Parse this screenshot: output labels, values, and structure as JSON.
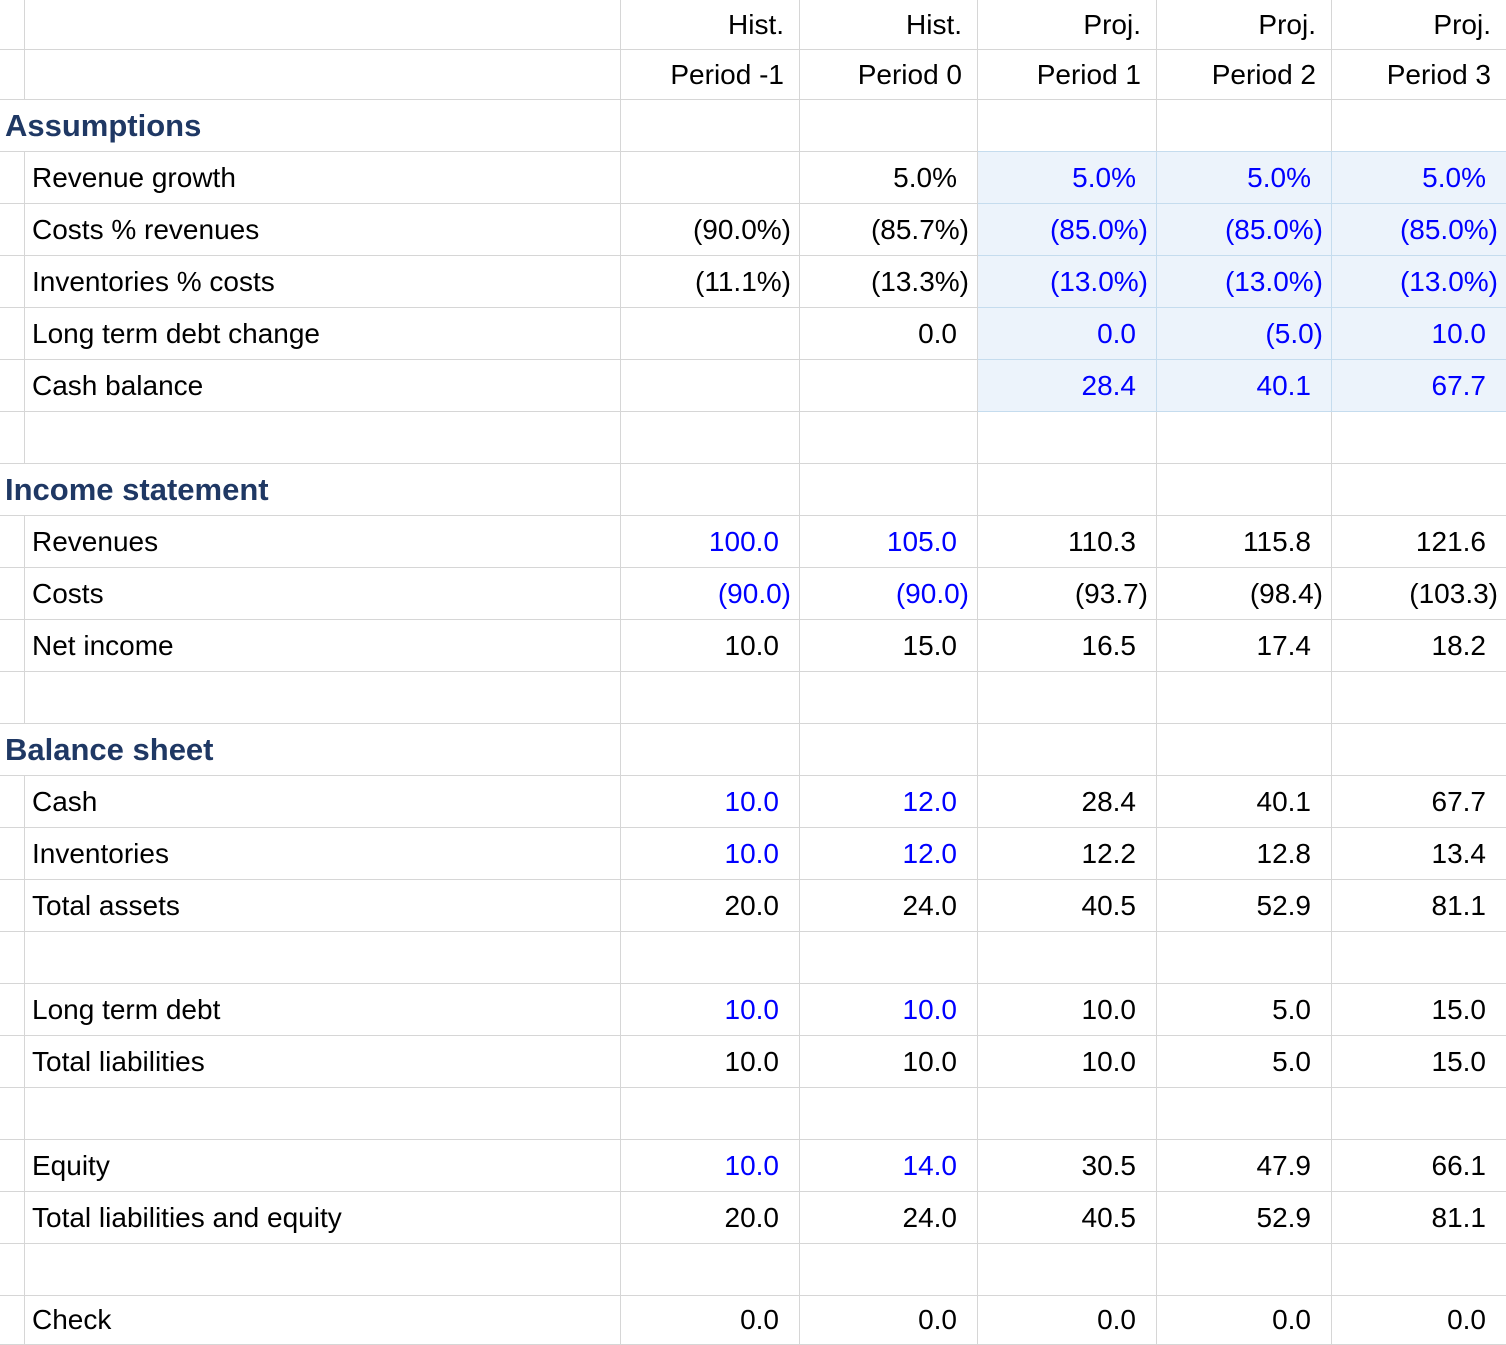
{
  "columns": {
    "group_labels": [
      "Hist.",
      "Hist.",
      "Proj.",
      "Proj.",
      "Proj."
    ],
    "period_labels": [
      "Period -1",
      "Period 0",
      "Period 1",
      "Period 2",
      "Period 3"
    ]
  },
  "grid": {
    "rows": [
      {
        "type": "colgroup-header"
      },
      {
        "type": "period-header"
      },
      {
        "type": "section",
        "title": "Assumptions",
        "shaded_top": true
      },
      {
        "type": "data",
        "label": "Revenue growth",
        "cells": [
          {
            "t": ""
          },
          {
            "t": "5.0%"
          },
          {
            "t": "5.0%",
            "c": "blue",
            "sh": true
          },
          {
            "t": "5.0%",
            "c": "blue",
            "sh": true
          },
          {
            "t": "5.0%",
            "c": "blue",
            "sh": true
          }
        ]
      },
      {
        "type": "data",
        "label": "Costs % revenues",
        "cells": [
          {
            "t": "(90.0%)"
          },
          {
            "t": "(85.7%)"
          },
          {
            "t": "(85.0%)",
            "c": "blue",
            "sh": true
          },
          {
            "t": "(85.0%)",
            "c": "blue",
            "sh": true
          },
          {
            "t": "(85.0%)",
            "c": "blue",
            "sh": true
          }
        ]
      },
      {
        "type": "data",
        "label": "Inventories % costs",
        "cells": [
          {
            "t": "(11.1%)"
          },
          {
            "t": "(13.3%)"
          },
          {
            "t": "(13.0%)",
            "c": "blue",
            "sh": true
          },
          {
            "t": "(13.0%)",
            "c": "blue",
            "sh": true
          },
          {
            "t": "(13.0%)",
            "c": "blue",
            "sh": true
          }
        ]
      },
      {
        "type": "data",
        "label": "Long term debt change",
        "cells": [
          {
            "t": ""
          },
          {
            "t": "0.0"
          },
          {
            "t": "0.0",
            "c": "blue",
            "sh": true
          },
          {
            "t": "(5.0)",
            "c": "blue",
            "sh": true
          },
          {
            "t": "10.0",
            "c": "blue",
            "sh": true
          }
        ]
      },
      {
        "type": "data",
        "label": "Cash balance",
        "cells": [
          {
            "t": ""
          },
          {
            "t": ""
          },
          {
            "t": "28.4",
            "c": "blue",
            "sh": true
          },
          {
            "t": "40.1",
            "c": "blue",
            "sh": true
          },
          {
            "t": "67.7",
            "c": "blue",
            "sh": true
          }
        ]
      },
      {
        "type": "blank"
      },
      {
        "type": "section",
        "title": "Income statement"
      },
      {
        "type": "data",
        "label": "Revenues",
        "cells": [
          {
            "t": "100.0",
            "c": "blue"
          },
          {
            "t": "105.0",
            "c": "blue"
          },
          {
            "t": "110.3"
          },
          {
            "t": "115.8"
          },
          {
            "t": "121.6"
          }
        ]
      },
      {
        "type": "data",
        "label": "Costs",
        "cells": [
          {
            "t": "(90.0)",
            "c": "blue"
          },
          {
            "t": "(90.0)",
            "c": "blue"
          },
          {
            "t": "(93.7)"
          },
          {
            "t": "(98.4)"
          },
          {
            "t": "(103.3)"
          }
        ]
      },
      {
        "type": "data",
        "label": "Net income",
        "cells": [
          {
            "t": "10.0"
          },
          {
            "t": "15.0"
          },
          {
            "t": "16.5"
          },
          {
            "t": "17.4"
          },
          {
            "t": "18.2"
          }
        ]
      },
      {
        "type": "blank"
      },
      {
        "type": "section",
        "title": "Balance sheet"
      },
      {
        "type": "data",
        "label": "Cash",
        "cells": [
          {
            "t": "10.0",
            "c": "blue"
          },
          {
            "t": "12.0",
            "c": "blue"
          },
          {
            "t": "28.4"
          },
          {
            "t": "40.1"
          },
          {
            "t": "67.7"
          }
        ]
      },
      {
        "type": "data",
        "label": "Inventories",
        "cells": [
          {
            "t": "10.0",
            "c": "blue"
          },
          {
            "t": "12.0",
            "c": "blue"
          },
          {
            "t": "12.2"
          },
          {
            "t": "12.8"
          },
          {
            "t": "13.4"
          }
        ]
      },
      {
        "type": "data",
        "label": "Total assets",
        "cells": [
          {
            "t": "20.0"
          },
          {
            "t": "24.0"
          },
          {
            "t": "40.5"
          },
          {
            "t": "52.9"
          },
          {
            "t": "81.1"
          }
        ]
      },
      {
        "type": "blank"
      },
      {
        "type": "data",
        "label": "Long term debt",
        "cells": [
          {
            "t": "10.0",
            "c": "blue"
          },
          {
            "t": "10.0",
            "c": "blue"
          },
          {
            "t": "10.0"
          },
          {
            "t": "5.0"
          },
          {
            "t": "15.0"
          }
        ]
      },
      {
        "type": "data",
        "label": "Total liabilities",
        "cells": [
          {
            "t": "10.0"
          },
          {
            "t": "10.0"
          },
          {
            "t": "10.0"
          },
          {
            "t": "5.0"
          },
          {
            "t": "15.0"
          }
        ]
      },
      {
        "type": "blank"
      },
      {
        "type": "data",
        "label": "Equity",
        "cells": [
          {
            "t": "10.0",
            "c": "blue"
          },
          {
            "t": "14.0",
            "c": "blue"
          },
          {
            "t": "30.5"
          },
          {
            "t": "47.9"
          },
          {
            "t": "66.1"
          }
        ]
      },
      {
        "type": "data",
        "label": "Total liabilities and equity",
        "cells": [
          {
            "t": "20.0"
          },
          {
            "t": "24.0"
          },
          {
            "t": "40.5"
          },
          {
            "t": "52.9"
          },
          {
            "t": "81.1"
          }
        ]
      },
      {
        "type": "blank"
      },
      {
        "type": "data",
        "label": "Check",
        "cells": [
          {
            "t": "0.0"
          },
          {
            "t": "0.0"
          },
          {
            "t": "0.0"
          },
          {
            "t": "0.0"
          },
          {
            "t": "0.0"
          }
        ]
      }
    ]
  },
  "colors": {
    "input_blue": "#0000ff",
    "heading_navy": "#1f3864",
    "gridline_gray": "#d6d6d6",
    "shaded_cell_bg": "#ecf3fb",
    "shaded_gridline": "#c5dcee",
    "text_black": "#000000"
  }
}
